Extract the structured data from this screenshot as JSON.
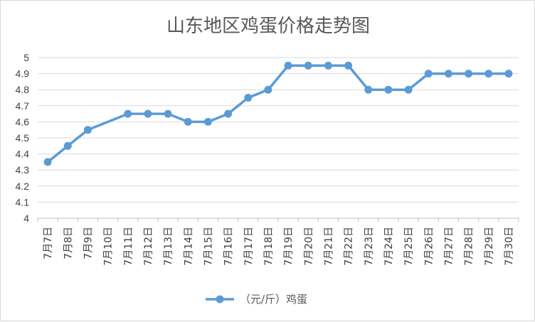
{
  "chart_data": {
    "type": "line",
    "title": "山东地区鸡蛋价格走势图",
    "categories": [
      "7月7日",
      "7月8日",
      "7月9日",
      "7月10日",
      "7月11日",
      "7月12日",
      "7月13日",
      "7月14日",
      "7月15日",
      "7月16日",
      "7月17日",
      "7月18日",
      "7月19日",
      "7月20日",
      "7月21日",
      "7月22日",
      "7月23日",
      "7月24日",
      "7月25日",
      "7月26日",
      "7月27日",
      "7月28日",
      "7月29日",
      "7月30日"
    ],
    "series": [
      {
        "name": "（元/斤）鸡蛋",
        "color": "#5b9bd5",
        "values": [
          4.35,
          4.45,
          4.55,
          null,
          4.65,
          4.65,
          4.65,
          4.6,
          4.6,
          4.65,
          4.75,
          4.8,
          4.95,
          4.95,
          4.95,
          4.95,
          4.8,
          4.8,
          4.8,
          4.9,
          4.9,
          4.9,
          4.9,
          4.9
        ]
      }
    ],
    "yticks": [
      "4",
      "4.1",
      "4.2",
      "4.3",
      "4.4",
      "4.5",
      "4.6",
      "4.7",
      "4.8",
      "4.9",
      "5"
    ],
    "ylim": [
      4,
      5
    ],
    "grid": true,
    "legend_position": "bottom"
  }
}
